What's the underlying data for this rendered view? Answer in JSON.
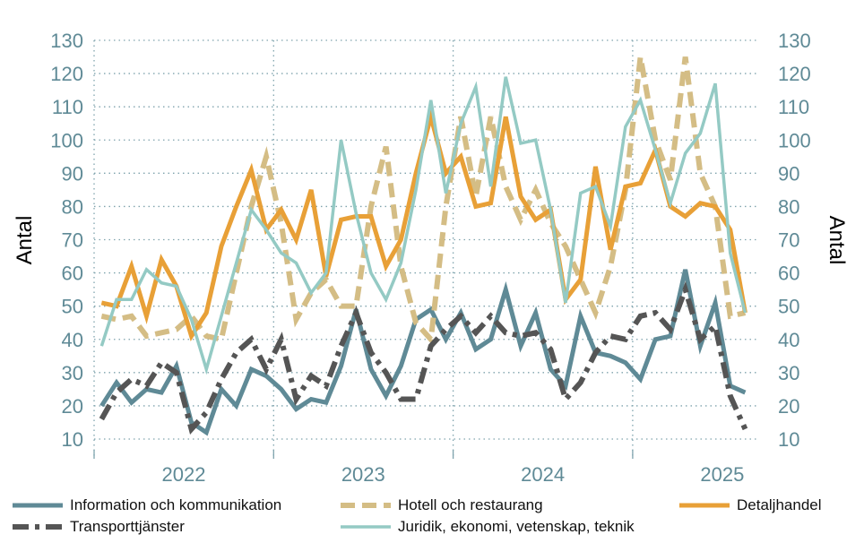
{
  "chart_data": {
    "type": "line",
    "title": "",
    "ylabel": "Antal",
    "ylabel_right": "Antal",
    "ylim": [
      10,
      130
    ],
    "yticks": [
      10,
      20,
      30,
      40,
      50,
      60,
      70,
      80,
      90,
      100,
      110,
      120,
      130
    ],
    "grid": true,
    "x_start": "2022-01",
    "x_frequency": "monthly",
    "year_labels": [
      "2022",
      "2023",
      "2024",
      "2025"
    ],
    "legend_position": "bottom",
    "series": [
      {
        "name": "Information och kommunikation",
        "color": "#5f8a96",
        "style": "solid",
        "width": 5,
        "values": [
          20,
          27,
          21,
          25,
          24,
          32,
          15,
          12,
          25,
          20,
          31,
          29,
          25,
          19,
          22,
          21,
          32,
          49,
          31,
          23,
          32,
          46,
          49,
          40,
          48,
          37,
          40,
          55,
          38,
          48,
          31,
          26,
          47,
          36,
          35,
          33,
          28,
          40,
          41,
          61,
          38,
          51,
          26,
          24
        ]
      },
      {
        "name": "Hotell och restaurang",
        "color": "#d4bd85",
        "style": "dash",
        "width": 6,
        "values": [
          47,
          46,
          47,
          41,
          42,
          43,
          47,
          41,
          40,
          60,
          80,
          95,
          75,
          46,
          54,
          58,
          50,
          50,
          80,
          98,
          62,
          45,
          40,
          80,
          107,
          83,
          107,
          86,
          76,
          85,
          75,
          68,
          58,
          48,
          62,
          85,
          125,
          100,
          88,
          125,
          90,
          80,
          47,
          48
        ]
      },
      {
        "name": "Detaljhandel",
        "color": "#e8a037",
        "style": "solid",
        "width": 5,
        "values": [
          51,
          50,
          62,
          47,
          64,
          56,
          41,
          48,
          68,
          80,
          91,
          73,
          79,
          70,
          85,
          59,
          76,
          77,
          77,
          62,
          70,
          90,
          107,
          90,
          95,
          80,
          81,
          107,
          83,
          76,
          79,
          52,
          58,
          92,
          67,
          86,
          87,
          97,
          80,
          77,
          81,
          80,
          73,
          48
        ]
      },
      {
        "name": "Transporttjänster",
        "color": "#555555",
        "style": "dashdot",
        "width": 6,
        "values": [
          16,
          24,
          28,
          26,
          33,
          30,
          13,
          18,
          28,
          36,
          40,
          31,
          40,
          22,
          29,
          26,
          38,
          48,
          36,
          30,
          22,
          22,
          38,
          43,
          47,
          42,
          47,
          42,
          41,
          42,
          37,
          22,
          27,
          36,
          41,
          40,
          47,
          48,
          43,
          55,
          40,
          44,
          23,
          13
        ]
      },
      {
        "name": "Juridik, ekonomi, vetenskap, teknik",
        "color": "#94cac4",
        "style": "solid",
        "width": 3.5,
        "values": [
          38,
          52,
          52,
          61,
          57,
          56,
          46,
          31,
          47,
          63,
          79,
          73,
          66,
          63,
          54,
          60,
          100,
          78,
          60,
          52,
          63,
          85,
          112,
          84,
          105,
          116,
          86,
          119,
          99,
          100,
          79,
          51,
          84,
          86,
          74,
          104,
          112,
          97,
          81,
          96,
          102,
          117,
          66,
          48
        ]
      }
    ]
  }
}
